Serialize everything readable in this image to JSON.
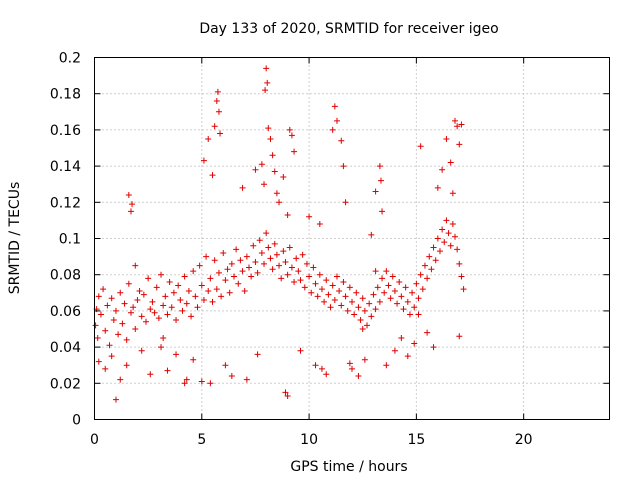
{
  "chart_data": {
    "type": "scatter",
    "title": "Day 133 of 2020, SRMTID for receiver igeo",
    "xlabel": "GPS time / hours",
    "ylabel": "SRMTID / TECUs",
    "xlim": [
      0,
      24
    ],
    "ylim": [
      0,
      0.2
    ],
    "x_ticks": [
      0,
      5,
      10,
      15,
      20
    ],
    "x_tick_labels": [
      "0",
      "5",
      "10",
      "15",
      "20"
    ],
    "y_ticks": [
      0,
      0.02,
      0.04,
      0.06,
      0.08,
      0.1,
      0.12,
      0.14,
      0.16,
      0.18,
      0.2
    ],
    "y_tick_labels": [
      "0",
      "0.02",
      "0.04",
      "0.06",
      "0.08",
      "0.1",
      "0.12",
      "0.14",
      "0.16",
      "0.18",
      "0.2"
    ],
    "grid": true,
    "marker": "+",
    "marker_color": "#e00000",
    "series": [
      {
        "name": "SRMTID",
        "x": [
          0.05,
          0.1,
          0.15,
          0.2,
          0.3,
          0.4,
          0.5,
          0.6,
          0.7,
          0.8,
          0.9,
          1.0,
          1.1,
          1.2,
          1.3,
          1.4,
          1.5,
          1.6,
          1.7,
          1.8,
          1.9,
          2.0,
          2.1,
          2.2,
          2.3,
          2.4,
          2.5,
          2.6,
          2.7,
          2.8,
          2.9,
          3.0,
          3.1,
          3.2,
          3.3,
          3.4,
          3.5,
          3.6,
          3.7,
          3.8,
          3.9,
          4.0,
          4.1,
          4.2,
          4.3,
          4.4,
          4.5,
          4.6,
          4.7,
          4.8,
          4.9,
          5.0,
          5.1,
          5.2,
          5.3,
          5.4,
          5.5,
          5.6,
          5.7,
          5.8,
          5.9,
          6.0,
          6.1,
          6.2,
          6.3,
          6.4,
          6.5,
          6.6,
          6.7,
          6.8,
          6.9,
          7.0,
          7.1,
          7.2,
          7.3,
          7.4,
          7.5,
          7.6,
          7.7,
          7.8,
          7.9,
          8.0,
          8.1,
          8.2,
          8.3,
          8.4,
          8.5,
          8.6,
          8.7,
          8.8,
          8.9,
          9.0,
          9.1,
          9.2,
          9.3,
          9.4,
          9.5,
          9.6,
          9.7,
          9.8,
          9.9,
          10.0,
          10.1,
          10.2,
          10.3,
          10.4,
          10.5,
          10.6,
          10.7,
          10.8,
          10.9,
          11.0,
          11.1,
          11.2,
          11.3,
          11.4,
          11.5,
          11.6,
          11.7,
          11.8,
          11.9,
          12.0,
          12.1,
          12.2,
          12.3,
          12.4,
          12.5,
          12.6,
          12.7,
          12.8,
          12.9,
          13.0,
          13.1,
          13.2,
          13.3,
          13.4,
          13.5,
          13.6,
          13.7,
          13.8,
          13.9,
          14.0,
          14.1,
          14.2,
          14.3,
          14.4,
          14.5,
          14.6,
          14.7,
          14.8,
          14.9,
          15.0,
          15.1,
          15.2,
          15.3,
          15.4,
          15.5,
          15.6,
          15.7,
          15.8,
          15.9,
          16.0,
          16.1,
          16.2,
          16.3,
          16.4,
          16.5,
          16.6,
          16.7,
          16.8,
          16.9,
          17.0,
          17.1,
          17.2,
          0.2,
          0.5,
          0.8,
          1.2,
          1.5,
          1.6,
          1.7,
          1.75,
          2.2,
          2.6,
          3.1,
          3.4,
          3.8,
          4.2,
          4.6,
          5.0,
          5.1,
          5.3,
          5.5,
          5.6,
          5.7,
          5.75,
          5.8,
          5.85,
          6.4,
          6.9,
          7.1,
          7.5,
          7.8,
          7.9,
          7.95,
          8.0,
          8.05,
          8.1,
          8.2,
          8.3,
          8.4,
          8.5,
          8.6,
          8.8,
          8.9,
          9.0,
          9.1,
          9.2,
          9.3,
          9.6,
          10.0,
          10.3,
          10.5,
          10.8,
          11.1,
          11.2,
          11.3,
          11.5,
          11.6,
          11.7,
          12.0,
          12.3,
          12.6,
          12.9,
          13.1,
          13.3,
          13.35,
          13.4,
          13.6,
          14.0,
          14.3,
          14.6,
          14.9,
          15.2,
          15.5,
          15.8,
          16.0,
          16.2,
          16.4,
          16.6,
          16.7,
          16.8,
          16.9,
          17.0,
          17.1,
          1.0,
          1.9,
          3.2,
          4.3,
          5.4,
          6.1,
          7.6,
          9.0,
          10.6,
          11.9,
          12.5,
          13.1,
          15.1,
          17.0
        ],
        "y": [
          0.052,
          0.061,
          0.045,
          0.068,
          0.058,
          0.072,
          0.049,
          0.063,
          0.041,
          0.067,
          0.055,
          0.06,
          0.047,
          0.07,
          0.053,
          0.064,
          0.044,
          0.075,
          0.059,
          0.062,
          0.05,
          0.066,
          0.071,
          0.057,
          0.069,
          0.054,
          0.078,
          0.061,
          0.065,
          0.059,
          0.073,
          0.056,
          0.08,
          0.063,
          0.068,
          0.058,
          0.076,
          0.062,
          0.07,
          0.055,
          0.074,
          0.066,
          0.06,
          0.079,
          0.064,
          0.071,
          0.057,
          0.082,
          0.068,
          0.062,
          0.085,
          0.074,
          0.066,
          0.09,
          0.071,
          0.078,
          0.065,
          0.088,
          0.072,
          0.081,
          0.068,
          0.092,
          0.077,
          0.083,
          0.07,
          0.086,
          0.079,
          0.094,
          0.075,
          0.088,
          0.082,
          0.071,
          0.09,
          0.084,
          0.079,
          0.096,
          0.087,
          0.081,
          0.099,
          0.092,
          0.086,
          0.103,
          0.095,
          0.089,
          0.083,
          0.097,
          0.091,
          0.085,
          0.078,
          0.093,
          0.087,
          0.08,
          0.095,
          0.084,
          0.076,
          0.089,
          0.082,
          0.077,
          0.091,
          0.073,
          0.086,
          0.079,
          0.07,
          0.084,
          0.075,
          0.068,
          0.08,
          0.072,
          0.065,
          0.077,
          0.069,
          0.062,
          0.074,
          0.066,
          0.079,
          0.071,
          0.063,
          0.076,
          0.068,
          0.06,
          0.073,
          0.065,
          0.058,
          0.07,
          0.062,
          0.055,
          0.067,
          0.06,
          0.052,
          0.064,
          0.057,
          0.069,
          0.061,
          0.073,
          0.065,
          0.078,
          0.07,
          0.082,
          0.074,
          0.067,
          0.079,
          0.071,
          0.064,
          0.076,
          0.068,
          0.061,
          0.073,
          0.065,
          0.058,
          0.07,
          0.062,
          0.075,
          0.067,
          0.08,
          0.072,
          0.085,
          0.078,
          0.09,
          0.083,
          0.095,
          0.088,
          0.1,
          0.093,
          0.105,
          0.098,
          0.11,
          0.103,
          0.096,
          0.108,
          0.101,
          0.094,
          0.086,
          0.079,
          0.072,
          0.032,
          0.028,
          0.035,
          0.022,
          0.03,
          0.124,
          0.115,
          0.119,
          0.038,
          0.025,
          0.04,
          0.027,
          0.036,
          0.02,
          0.033,
          0.021,
          0.143,
          0.155,
          0.135,
          0.162,
          0.176,
          0.181,
          0.17,
          0.158,
          0.024,
          0.128,
          0.022,
          0.138,
          0.141,
          0.13,
          0.182,
          0.194,
          0.186,
          0.161,
          0.155,
          0.146,
          0.137,
          0.125,
          0.12,
          0.134,
          0.015,
          0.113,
          0.16,
          0.157,
          0.148,
          0.038,
          0.112,
          0.03,
          0.108,
          0.025,
          0.16,
          0.173,
          0.165,
          0.154,
          0.14,
          0.12,
          0.028,
          0.024,
          0.033,
          0.102,
          0.126,
          0.14,
          0.132,
          0.115,
          0.03,
          0.038,
          0.045,
          0.035,
          0.042,
          0.151,
          0.048,
          0.04,
          0.128,
          0.138,
          0.155,
          0.142,
          0.125,
          0.165,
          0.162,
          0.152,
          0.163,
          0.011,
          0.085,
          0.045,
          0.022,
          0.02,
          0.03,
          0.036,
          0.013,
          0.028,
          0.031,
          0.05,
          0.082,
          0.058,
          0.046
        ],
        "color": "#e00000"
      }
    ]
  }
}
